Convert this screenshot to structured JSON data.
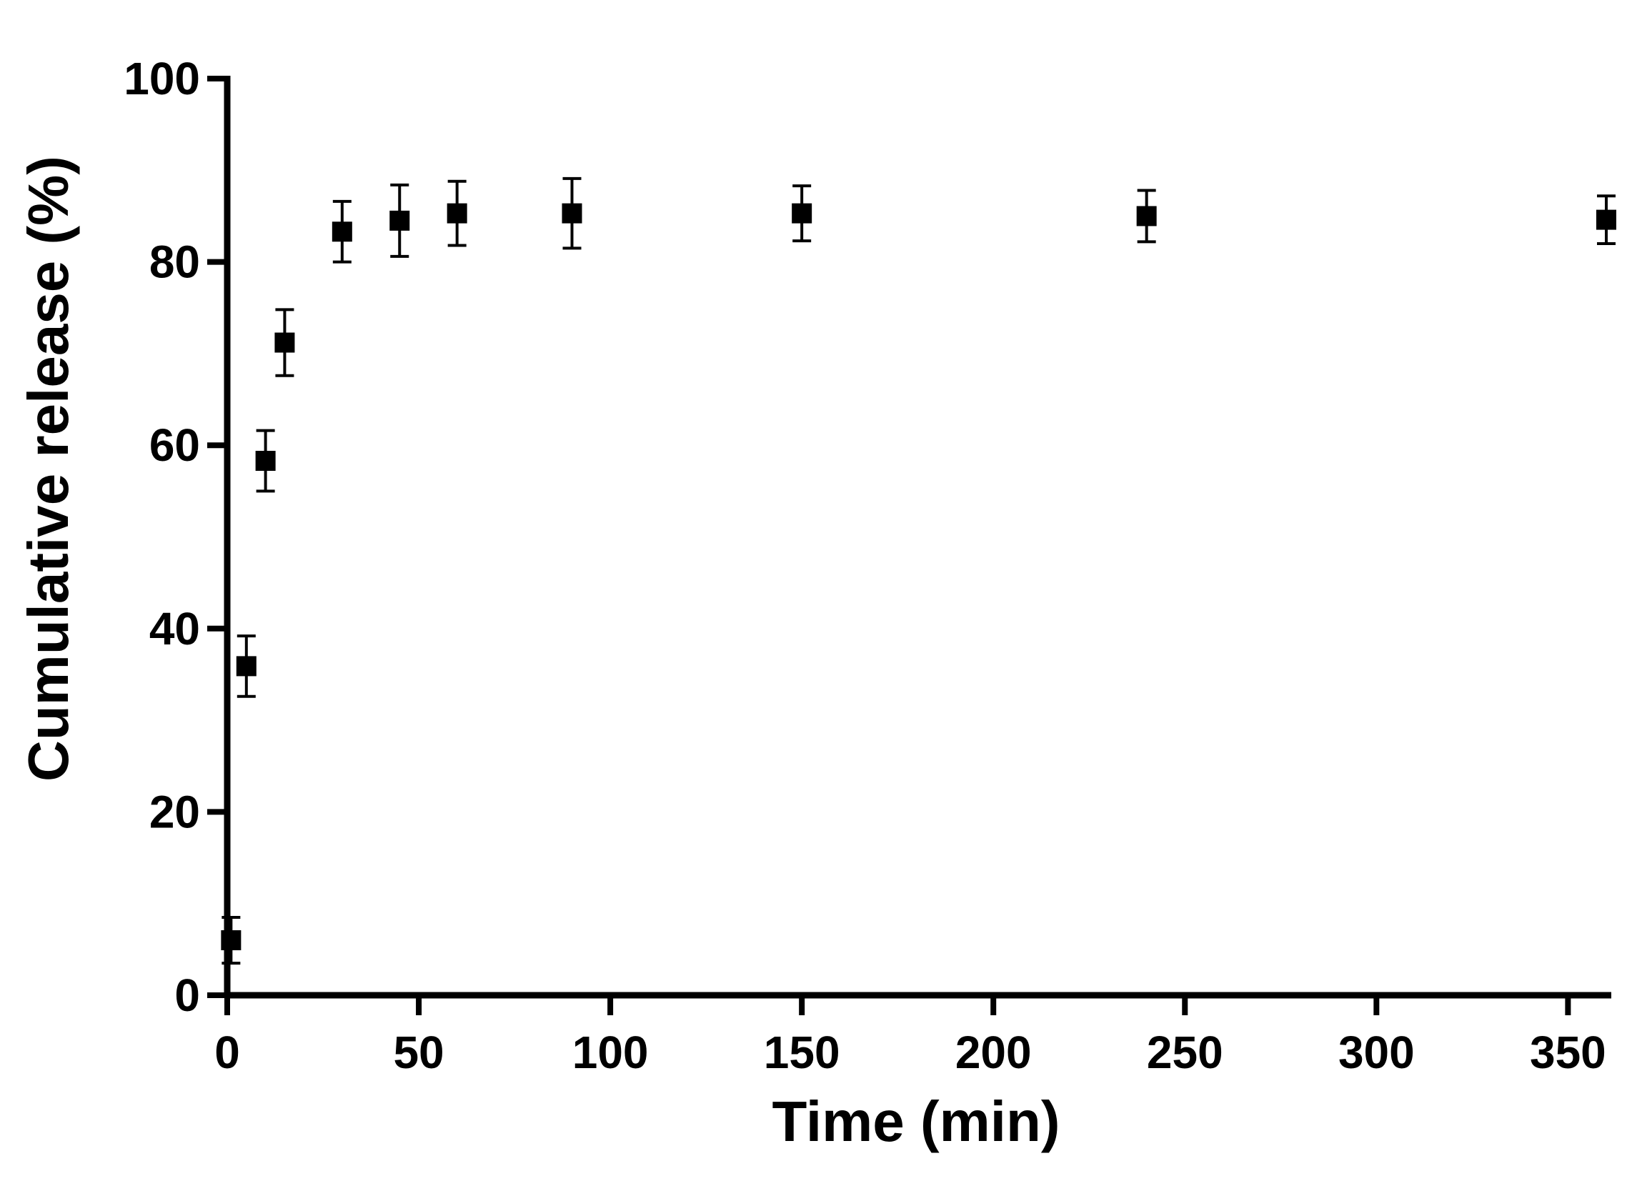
{
  "chart_data": {
    "type": "scatter",
    "xlabel": "Time (min)",
    "ylabel": "Cumulative release (%)",
    "xlim": [
      0,
      360
    ],
    "ylim": [
      0,
      100
    ],
    "xticks": [
      0,
      50,
      100,
      150,
      200,
      250,
      300,
      350
    ],
    "yticks": [
      0,
      20,
      40,
      60,
      80,
      100
    ],
    "xtick_labels": [
      "0",
      "50",
      "100",
      "150",
      "200",
      "250",
      "300",
      "350"
    ],
    "ytick_labels": [
      "0",
      "20",
      "40",
      "60",
      "80",
      "100"
    ],
    "grid": false,
    "marker": "square",
    "color": "#000000",
    "series": [
      {
        "x": [
          1,
          5,
          10,
          15,
          30,
          45,
          60,
          90,
          150,
          240,
          360
        ],
        "y": [
          6.0,
          35.9,
          58.3,
          71.2,
          83.3,
          84.5,
          85.3,
          85.3,
          85.3,
          85.0,
          84.6
        ],
        "error": [
          2.5,
          3.3,
          3.3,
          3.6,
          3.3,
          3.9,
          3.5,
          3.8,
          3.0,
          2.8,
          2.6
        ]
      }
    ]
  }
}
